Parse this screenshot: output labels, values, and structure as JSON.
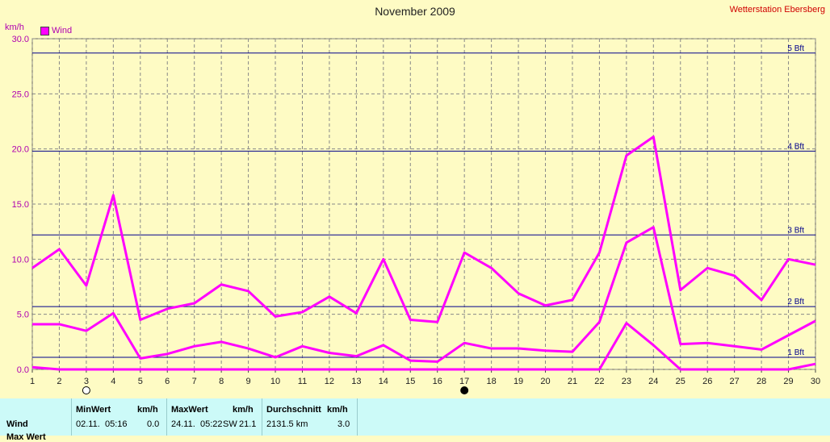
{
  "header": {
    "title": "November 2009",
    "station": "Wetterstation Ebersberg",
    "unit": "km/h",
    "legend_label": "Wind"
  },
  "colors": {
    "background": "#fefbc4",
    "series": "#ff00ff",
    "grid": "#888888",
    "beaufort_line": "#00008b",
    "summary_bg": "#ccfaf8"
  },
  "chart_data": {
    "type": "line",
    "x": [
      1,
      2,
      3,
      4,
      5,
      6,
      7,
      8,
      9,
      10,
      11,
      12,
      13,
      14,
      15,
      16,
      17,
      18,
      19,
      20,
      21,
      22,
      23,
      24,
      25,
      26,
      27,
      28,
      29,
      30
    ],
    "xlim": [
      1,
      30
    ],
    "ylim": [
      0,
      30
    ],
    "y_ticks": [
      "0.0",
      "5.0",
      "10.0",
      "15.0",
      "20.0",
      "25.0",
      "30.0"
    ],
    "y_tick_values": [
      0,
      5,
      10,
      15,
      20,
      25,
      30
    ],
    "grid": true,
    "series": [
      {
        "values": [
          9.2,
          10.9,
          7.6,
          15.8,
          4.5,
          5.5,
          6.0,
          7.7,
          7.1,
          4.8,
          5.2,
          6.6,
          5.1,
          10.0,
          4.5,
          4.3,
          10.6,
          9.2,
          6.9,
          5.8,
          6.3,
          10.6,
          19.4,
          21.1,
          7.2,
          9.2,
          8.5,
          6.3,
          10.0,
          9.5
        ]
      },
      {
        "values": [
          4.1,
          4.1,
          3.5,
          5.1,
          1.0,
          1.4,
          2.1,
          2.5,
          1.9,
          1.1,
          2.1,
          1.5,
          1.2,
          2.2,
          0.8,
          0.7,
          2.4,
          1.9,
          1.9,
          1.7,
          1.6,
          4.3,
          11.5,
          12.9,
          2.3,
          2.4,
          2.1,
          1.8,
          3.1,
          4.4
        ]
      },
      {
        "values": [
          0.2,
          0.0,
          0.0,
          0.0,
          0.0,
          0.0,
          0.0,
          0.0,
          0.0,
          0.0,
          0.0,
          0.0,
          0.0,
          0.0,
          0.0,
          0.0,
          0.0,
          0.0,
          0.0,
          0.0,
          0.0,
          0.0,
          4.2,
          2.2,
          0.0,
          0.0,
          0.0,
          0.0,
          0.0,
          0.5
        ]
      }
    ],
    "beaufort": [
      {
        "label": "1 Bft",
        "value": 1.1
      },
      {
        "label": "2 Bft",
        "value": 5.7
      },
      {
        "label": "3 Bft",
        "value": 12.2
      },
      {
        "label": "4 Bft",
        "value": 19.8
      },
      {
        "label": "5 Bft",
        "value": 28.7
      }
    ],
    "moon_markers": [
      {
        "day": 3,
        "phase": "full"
      },
      {
        "day": 17,
        "phase": "new"
      }
    ]
  },
  "summary": {
    "row_label": "Wind",
    "row_label_2": "Max Wert",
    "min_header": "MinWert",
    "min_unit": "km/h",
    "min_date": "02.11.",
    "min_time": "05:16",
    "min_value": "0.0",
    "max_header": "MaxWert",
    "max_unit": "km/h",
    "max_date": "24.11.",
    "max_time": "05:22",
    "max_dir": "SW",
    "max_value": "21.1",
    "avg_header": "Durchschnitt",
    "avg_unit": "km/h",
    "avg_total": "2131.5 km",
    "avg_value": "3.0"
  }
}
